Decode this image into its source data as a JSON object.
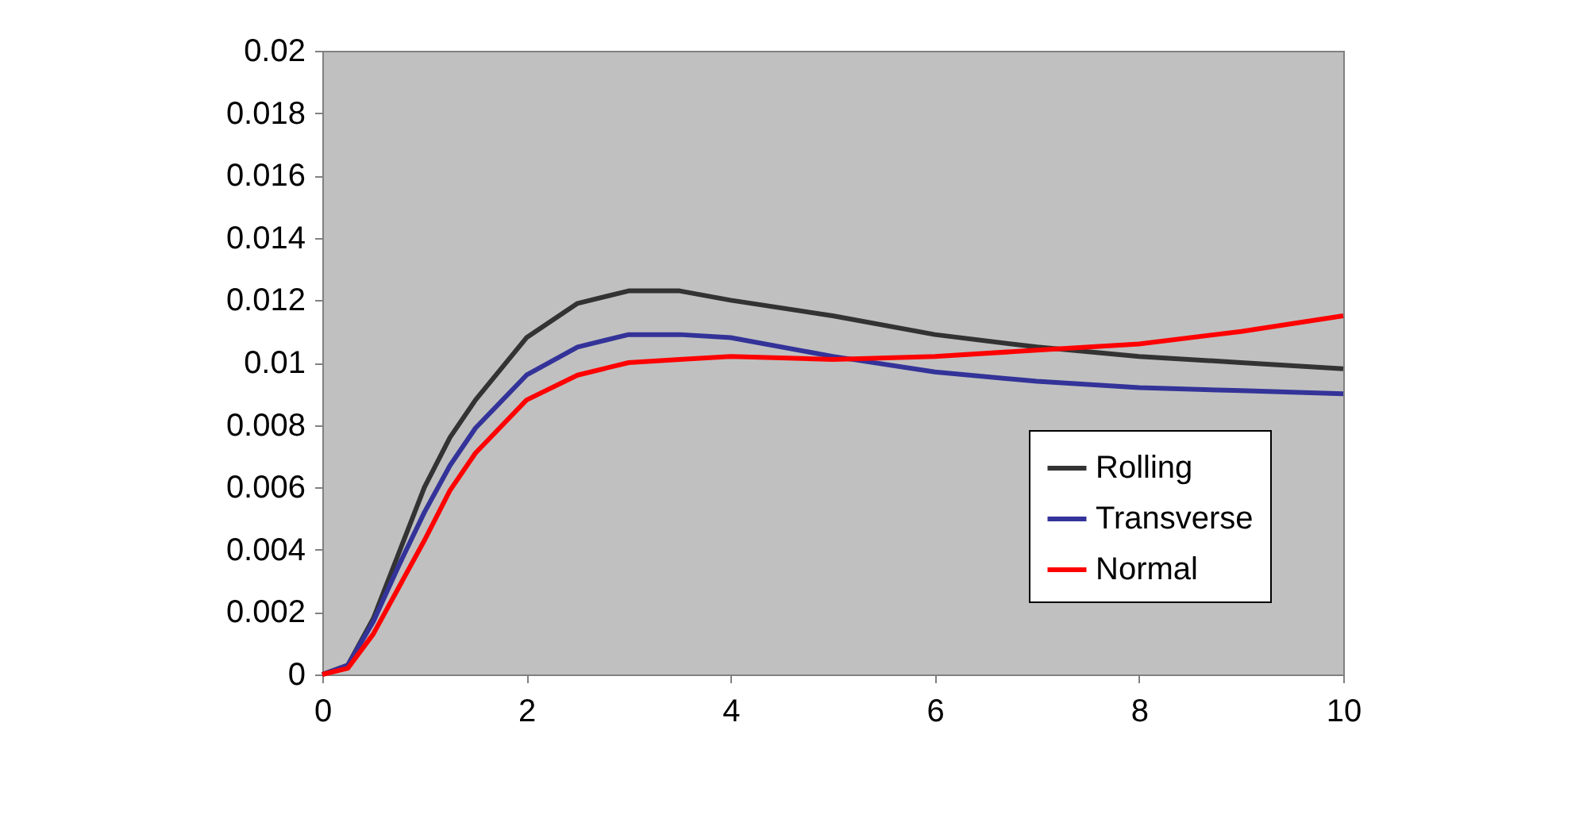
{
  "chart_data": {
    "type": "line",
    "x": [
      0,
      0.25,
      0.5,
      0.75,
      1,
      1.25,
      1.5,
      2,
      2.5,
      3,
      3.5,
      4,
      5,
      6,
      7,
      8,
      9,
      10
    ],
    "series": [
      {
        "name": "Rolling",
        "color": "#333333",
        "values": [
          0,
          0.0003,
          0.0018,
          0.0039,
          0.006,
          0.0076,
          0.0088,
          0.0108,
          0.0119,
          0.0123,
          0.0123,
          0.012,
          0.0115,
          0.0109,
          0.0105,
          0.0102,
          0.01,
          0.0098
        ]
      },
      {
        "name": "Transverse",
        "color": "#333399",
        "values": [
          0,
          0.0003,
          0.0017,
          0.0035,
          0.0052,
          0.0067,
          0.0079,
          0.0096,
          0.0105,
          0.0109,
          0.0109,
          0.0108,
          0.0102,
          0.0097,
          0.0094,
          0.0092,
          0.0091,
          0.009
        ]
      },
      {
        "name": "Normal",
        "color": "#ff0000",
        "values": [
          0,
          0.0002,
          0.0013,
          0.0028,
          0.0043,
          0.0059,
          0.0071,
          0.0088,
          0.0096,
          0.01,
          0.0101,
          0.0102,
          0.0101,
          0.0102,
          0.0104,
          0.0106,
          0.011,
          0.0115
        ]
      }
    ],
    "xlim": [
      0,
      10
    ],
    "xticks": [
      0,
      2,
      4,
      6,
      8,
      10
    ],
    "ylim": [
      0,
      0.02
    ],
    "yticks": [
      0,
      0.002,
      0.004,
      0.006,
      0.008,
      0.01,
      0.012,
      0.014,
      0.016,
      0.018,
      0.02
    ],
    "grid": false,
    "legend": "bottom right",
    "marker": "none",
    "line_style": "solid"
  }
}
